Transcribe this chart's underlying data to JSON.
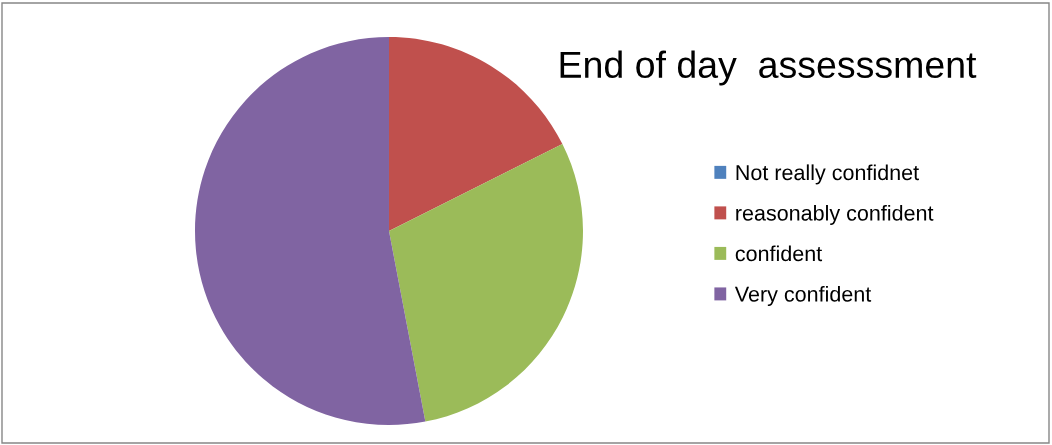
{
  "chart_data": {
    "type": "pie",
    "title": "End of day  assesssment",
    "categories": [
      "Not really confidnet",
      "reasonably confident",
      "confident",
      "Very confident"
    ],
    "values": [
      0,
      17.6,
      29.4,
      53.0
    ],
    "colors": [
      "#4f81bd",
      "#c0504d",
      "#9bbb59",
      "#8064a2"
    ],
    "legend": "right"
  }
}
